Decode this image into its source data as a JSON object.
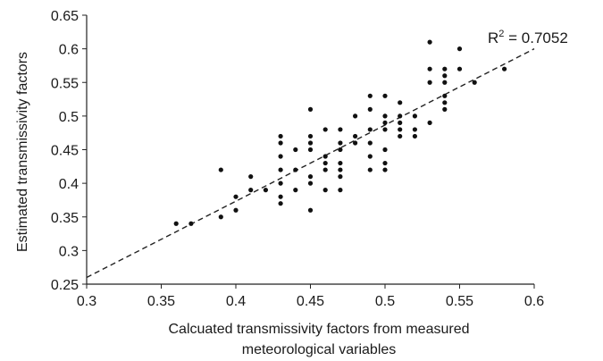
{
  "chart_data": {
    "type": "scatter",
    "xlabel_lines": [
      "Calcuated transmissivity factors from measured",
      "meteorological variables"
    ],
    "ylabel": "Estimated transmissivity factors",
    "xlim": [
      0.3,
      0.6
    ],
    "ylim": [
      0.25,
      0.65
    ],
    "x_ticks": [
      "0.3",
      "0.35",
      "0.4",
      "0.45",
      "0.5",
      "0.55",
      "0.6"
    ],
    "y_ticks": [
      "0.25",
      "0.3",
      "0.35",
      "0.4",
      "0.45",
      "0.5",
      "0.55",
      "0.6",
      "0.65"
    ],
    "annotation": {
      "prefix": "R",
      "sup": "2",
      "suffix": " = 0.7052"
    },
    "trendline": {
      "style": "dashed",
      "x": [
        0.3,
        0.6
      ],
      "y": [
        0.26,
        0.6
      ]
    },
    "grid": false,
    "legend": "none",
    "points": [
      [
        0.36,
        0.34
      ],
      [
        0.37,
        0.34
      ],
      [
        0.39,
        0.42
      ],
      [
        0.39,
        0.35
      ],
      [
        0.4,
        0.38
      ],
      [
        0.4,
        0.36
      ],
      [
        0.41,
        0.41
      ],
      [
        0.41,
        0.39
      ],
      [
        0.42,
        0.39
      ],
      [
        0.43,
        0.47
      ],
      [
        0.43,
        0.46
      ],
      [
        0.43,
        0.44
      ],
      [
        0.43,
        0.42
      ],
      [
        0.43,
        0.4
      ],
      [
        0.43,
        0.38
      ],
      [
        0.43,
        0.37
      ],
      [
        0.44,
        0.45
      ],
      [
        0.44,
        0.42
      ],
      [
        0.44,
        0.39
      ],
      [
        0.45,
        0.51
      ],
      [
        0.45,
        0.47
      ],
      [
        0.45,
        0.46
      ],
      [
        0.45,
        0.45
      ],
      [
        0.45,
        0.41
      ],
      [
        0.45,
        0.4
      ],
      [
        0.45,
        0.36
      ],
      [
        0.46,
        0.48
      ],
      [
        0.46,
        0.44
      ],
      [
        0.46,
        0.43
      ],
      [
        0.46,
        0.42
      ],
      [
        0.46,
        0.39
      ],
      [
        0.47,
        0.48
      ],
      [
        0.47,
        0.46
      ],
      [
        0.47,
        0.45
      ],
      [
        0.47,
        0.43
      ],
      [
        0.47,
        0.42
      ],
      [
        0.47,
        0.41
      ],
      [
        0.47,
        0.39
      ],
      [
        0.48,
        0.5
      ],
      [
        0.48,
        0.47
      ],
      [
        0.48,
        0.46
      ],
      [
        0.49,
        0.53
      ],
      [
        0.49,
        0.51
      ],
      [
        0.49,
        0.48
      ],
      [
        0.49,
        0.46
      ],
      [
        0.49,
        0.44
      ],
      [
        0.49,
        0.42
      ],
      [
        0.5,
        0.53
      ],
      [
        0.5,
        0.5
      ],
      [
        0.5,
        0.49
      ],
      [
        0.5,
        0.48
      ],
      [
        0.5,
        0.45
      ],
      [
        0.5,
        0.43
      ],
      [
        0.5,
        0.42
      ],
      [
        0.51,
        0.52
      ],
      [
        0.51,
        0.5
      ],
      [
        0.51,
        0.49
      ],
      [
        0.51,
        0.48
      ],
      [
        0.51,
        0.47
      ],
      [
        0.52,
        0.5
      ],
      [
        0.52,
        0.48
      ],
      [
        0.52,
        0.47
      ],
      [
        0.53,
        0.61
      ],
      [
        0.53,
        0.57
      ],
      [
        0.53,
        0.55
      ],
      [
        0.53,
        0.49
      ],
      [
        0.54,
        0.57
      ],
      [
        0.54,
        0.56
      ],
      [
        0.54,
        0.55
      ],
      [
        0.54,
        0.53
      ],
      [
        0.54,
        0.52
      ],
      [
        0.54,
        0.51
      ],
      [
        0.55,
        0.6
      ],
      [
        0.55,
        0.57
      ],
      [
        0.56,
        0.55
      ],
      [
        0.58,
        0.57
      ]
    ]
  }
}
